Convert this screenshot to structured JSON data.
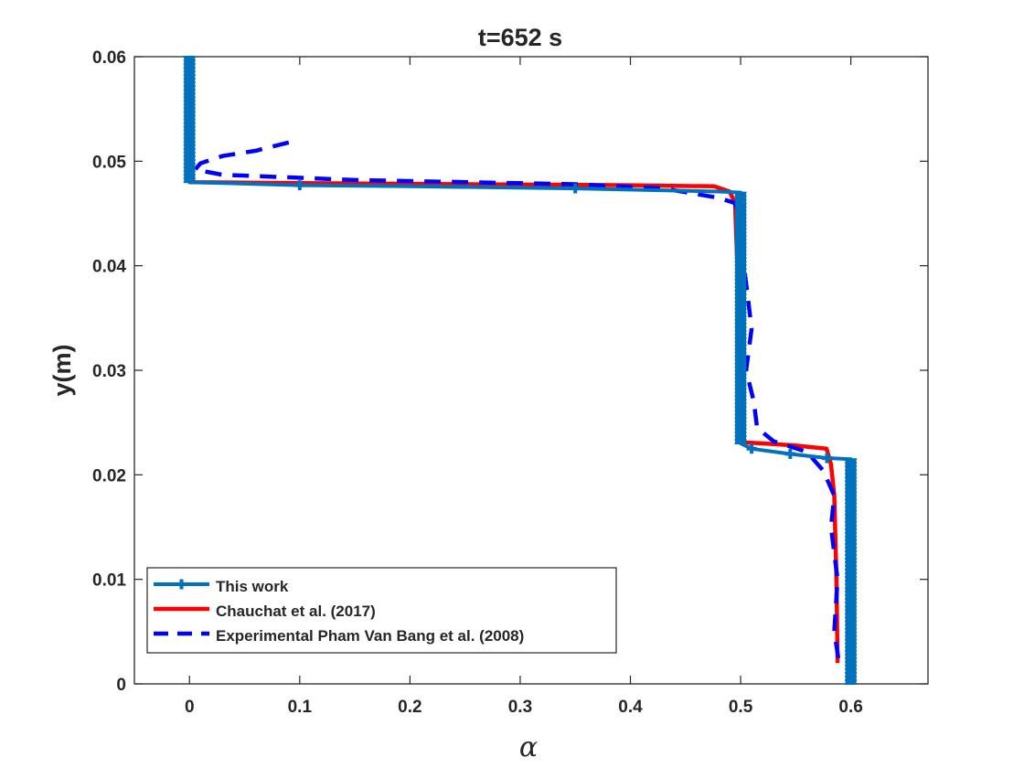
{
  "chart_data": {
    "type": "line",
    "title": "t=652 s",
    "xlabel": "α",
    "ylabel": "y(m)",
    "xlim": [
      -0.05,
      0.67
    ],
    "ylim": [
      0,
      0.06
    ],
    "xticks": [
      0,
      0.1,
      0.2,
      0.3,
      0.4,
      0.5,
      0.6
    ],
    "xtick_labels": [
      "0",
      "0.1",
      "0.2",
      "0.3",
      "0.4",
      "0.5",
      "0.6"
    ],
    "yticks": [
      0,
      0.01,
      0.02,
      0.03,
      0.04,
      0.05,
      0.06
    ],
    "ytick_labels": [
      "0",
      "0.01",
      "0.02",
      "0.03",
      "0.04",
      "0.05",
      "0.06"
    ],
    "grid": false,
    "legend_position": "bottom-left",
    "series": [
      {
        "name": "This work",
        "color": "#0072BD",
        "style": "solid-with-markers",
        "points": [
          [
            0.6,
            0.0
          ],
          [
            0.6,
            0.0215
          ],
          [
            0.5783,
            0.0216
          ],
          [
            0.545,
            0.022
          ],
          [
            0.51,
            0.0225
          ],
          [
            0.5,
            0.023
          ],
          [
            0.5,
            0.0355
          ],
          [
            0.5,
            0.047
          ],
          [
            0.5,
            0.047
          ],
          [
            0.48,
            0.0471
          ],
          [
            0.35,
            0.0474
          ],
          [
            0.2,
            0.0476
          ],
          [
            0.1,
            0.0477
          ],
          [
            0.0,
            0.048
          ],
          [
            0.0,
            0.06
          ]
        ],
        "marker_points": [
          [
            0.1,
            0.0477
          ],
          [
            0.35,
            0.0474
          ],
          [
            0.51,
            0.0225
          ],
          [
            0.545,
            0.022
          ],
          [
            0.5783,
            0.0216
          ]
        ],
        "dense_marker_segments": [
          [
            0.0,
            0.048,
            0.0,
            0.06
          ],
          [
            0.5,
            0.023,
            0.5,
            0.047
          ],
          [
            0.6,
            0.0,
            0.6,
            0.0215
          ]
        ]
      },
      {
        "name": "Chauchat et al. (2017)",
        "color": "#FF0000",
        "style": "solid",
        "points": [
          [
            0.0,
            0.06
          ],
          [
            0.0,
            0.048
          ],
          [
            0.1,
            0.0479
          ],
          [
            0.25,
            0.0478
          ],
          [
            0.4,
            0.0477
          ],
          [
            0.476,
            0.0476
          ],
          [
            0.49,
            0.0471
          ],
          [
            0.495,
            0.046
          ],
          [
            0.497,
            0.04
          ],
          [
            0.497,
            0.03
          ],
          [
            0.497,
            0.024
          ],
          [
            0.503,
            0.0231
          ],
          [
            0.52,
            0.023
          ],
          [
            0.55,
            0.0228
          ],
          [
            0.578,
            0.0225
          ],
          [
            0.582,
            0.021
          ],
          [
            0.585,
            0.018
          ],
          [
            0.587,
            0.01
          ],
          [
            0.588,
            0.002
          ]
        ]
      },
      {
        "name": "Experimental Pham Van Bang et al. (2008)",
        "color": "#0000FF",
        "style": "dashed",
        "points": [
          [
            0.09,
            0.0518
          ],
          [
            0.06,
            0.051
          ],
          [
            0.03,
            0.0505
          ],
          [
            0.01,
            0.0498
          ],
          [
            0.005,
            0.0492
          ],
          [
            0.03,
            0.0487
          ],
          [
            0.08,
            0.0485
          ],
          [
            0.15,
            0.0482
          ],
          [
            0.25,
            0.048
          ],
          [
            0.35,
            0.0478
          ],
          [
            0.43,
            0.0474
          ],
          [
            0.48,
            0.0465
          ],
          [
            0.495,
            0.046
          ],
          [
            0.5,
            0.044
          ],
          [
            0.503,
            0.04
          ],
          [
            0.51,
            0.034
          ],
          [
            0.505,
            0.03
          ],
          [
            0.512,
            0.027
          ],
          [
            0.515,
            0.0245
          ],
          [
            0.53,
            0.0232
          ],
          [
            0.56,
            0.0222
          ],
          [
            0.575,
            0.0204
          ],
          [
            0.585,
            0.018
          ],
          [
            0.582,
            0.015
          ],
          [
            0.588,
            0.01
          ],
          [
            0.585,
            0.005
          ],
          [
            0.59,
            0.0015
          ]
        ]
      }
    ]
  }
}
